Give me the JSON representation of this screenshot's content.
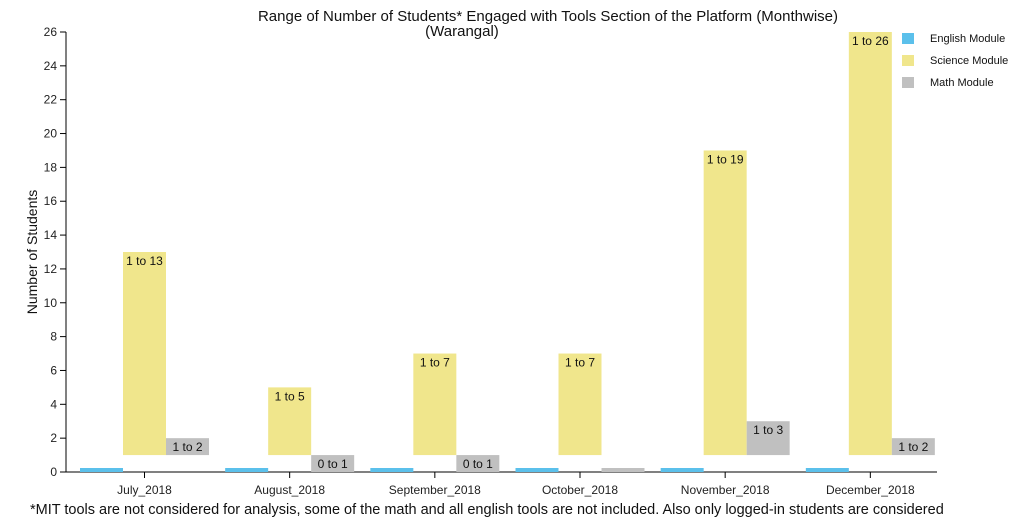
{
  "chart_data": {
    "type": "bar",
    "title": "Range of Number of Students* Engaged with Tools Section of the Platform (Monthwise)",
    "subtitle": "(Warangal)",
    "ylabel": "Number of Students",
    "xlabel": "",
    "ylim": [
      0,
      26
    ],
    "yticks": [
      0,
      2,
      4,
      6,
      8,
      10,
      12,
      14,
      16,
      18,
      20,
      22,
      24,
      26
    ],
    "categories": [
      "July_2018",
      "August_2018",
      "September_2018",
      "October_2018",
      "November_2018",
      "December_2018"
    ],
    "legend_position": "top-right",
    "grid": false,
    "series": [
      {
        "name": "English Module",
        "color": "#5bc0eb",
        "low": [
          0,
          0,
          0,
          0,
          0,
          0
        ],
        "high": [
          0,
          0,
          0,
          0,
          0,
          0
        ],
        "labels": [
          "",
          "",
          "",
          "",
          "",
          ""
        ]
      },
      {
        "name": "Science Module",
        "color": "#f0e68c",
        "low": [
          1,
          1,
          1,
          1,
          1,
          1
        ],
        "high": [
          13,
          5,
          7,
          7,
          19,
          26
        ],
        "labels": [
          "1 to 13",
          "1 to 5",
          "1 to 7",
          "1 to 7",
          "1 to 19",
          "1 to 26"
        ]
      },
      {
        "name": "Math Module",
        "color": "#c0c0c0",
        "low": [
          1,
          0,
          0,
          0,
          1,
          1
        ],
        "high": [
          2,
          1,
          1,
          0,
          3,
          2
        ],
        "labels": [
          "1 to 2",
          "0 to 1",
          "0 to 1",
          "",
          "1 to 3",
          "1 to 2"
        ]
      }
    ]
  },
  "footnote": "*MIT tools are not considered for analysis, some of the math and all english tools are not included. Also only logged-in students are considered"
}
